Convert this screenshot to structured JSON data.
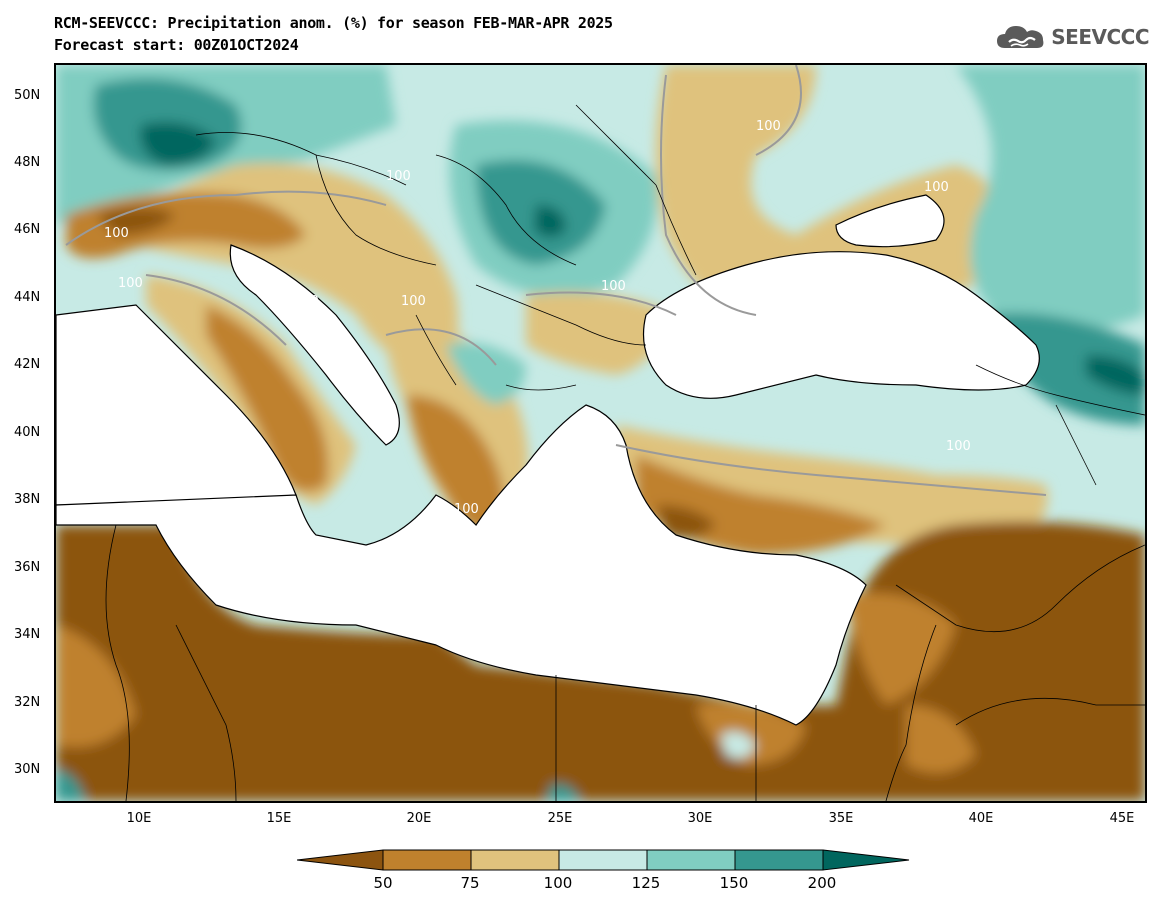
{
  "header": {
    "title_line1": "RCM-SEEVCCC: Precipitation anom. (%) for season FEB-MAR-APR 2025",
    "title_line2": "Forecast start: 00Z01OCT2024"
  },
  "logo": {
    "text": "SEEVCCC",
    "icon": "cloud-icon",
    "color": "#5a5a5a"
  },
  "map": {
    "lat_labels": [
      "50N",
      "48N",
      "46N",
      "44N",
      "42N",
      "40N",
      "38N",
      "36N",
      "34N",
      "32N",
      "30N"
    ],
    "lon_labels": [
      "10E",
      "15E",
      "20E",
      "25E",
      "30E",
      "35E",
      "40E",
      "45E"
    ],
    "contour_labels": [
      "100",
      "100",
      "100",
      "100",
      "100",
      "100",
      "100",
      "100",
      "100",
      "100"
    ],
    "colors": {
      "lt50": "#8c5410",
      "c50_75": "#bf812d",
      "c75_100": "#dfc27d",
      "c100_125": "#c7eae5",
      "c125_150": "#80cdc1",
      "c150_200": "#35978f",
      "gt200": "#01665e",
      "sea": "#ffffff",
      "border": "#000000",
      "contour": "#9a9a9a"
    }
  },
  "colorbar": {
    "labels": [
      "50",
      "75",
      "100",
      "125",
      "150",
      "200"
    ],
    "colors": [
      "#8c5410",
      "#bf812d",
      "#dfc27d",
      "#c7eae5",
      "#80cdc1",
      "#35978f",
      "#01665e"
    ]
  }
}
